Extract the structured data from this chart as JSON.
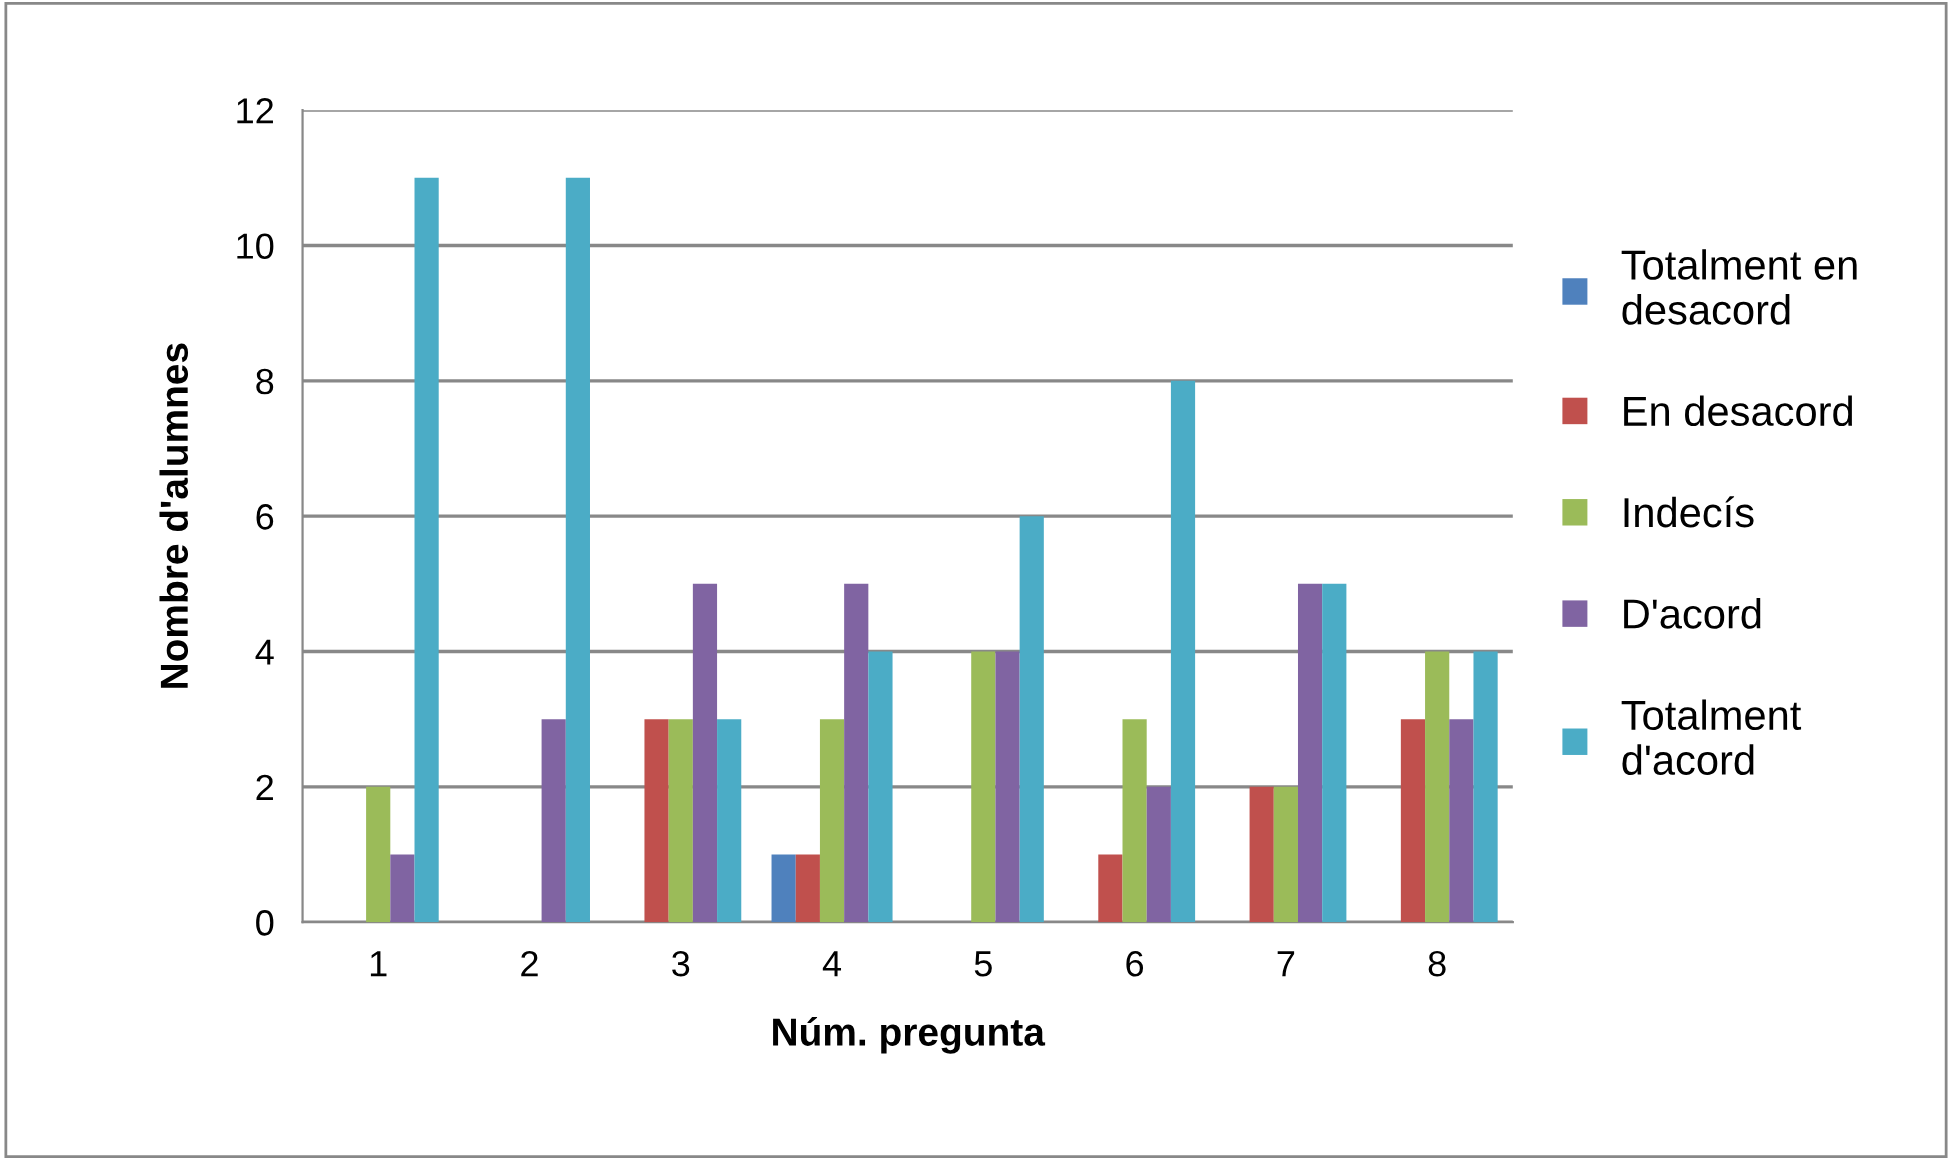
{
  "chart_data": {
    "type": "bar",
    "xlabel": "Núm. pregunta",
    "ylabel": "Nombre d'alumnes",
    "categories": [
      "1",
      "2",
      "3",
      "4",
      "5",
      "6",
      "7",
      "8"
    ],
    "series": [
      {
        "name": "Totalment en\ndesacord",
        "color": "#4f81bd",
        "values": [
          0,
          0,
          0,
          1,
          0,
          0,
          0,
          0
        ]
      },
      {
        "name": "En desacord",
        "color": "#c0504d",
        "values": [
          0,
          0,
          3,
          1,
          0,
          1,
          2,
          3
        ]
      },
      {
        "name": "Indecís",
        "color": "#9bbb59",
        "values": [
          2,
          0,
          3,
          3,
          4,
          3,
          2,
          4
        ]
      },
      {
        "name": "D'acord",
        "color": "#8064a2",
        "values": [
          1,
          3,
          5,
          5,
          4,
          2,
          5,
          3
        ]
      },
      {
        "name": "Totalment\nd'acord",
        "color": "#4bacc6",
        "values": [
          11,
          11,
          3,
          4,
          6,
          8,
          5,
          4
        ]
      }
    ],
    "ylim": [
      0,
      12
    ],
    "yticks": [
      0,
      2,
      4,
      6,
      8,
      10,
      12
    ],
    "grid": "y",
    "legend": "right"
  }
}
